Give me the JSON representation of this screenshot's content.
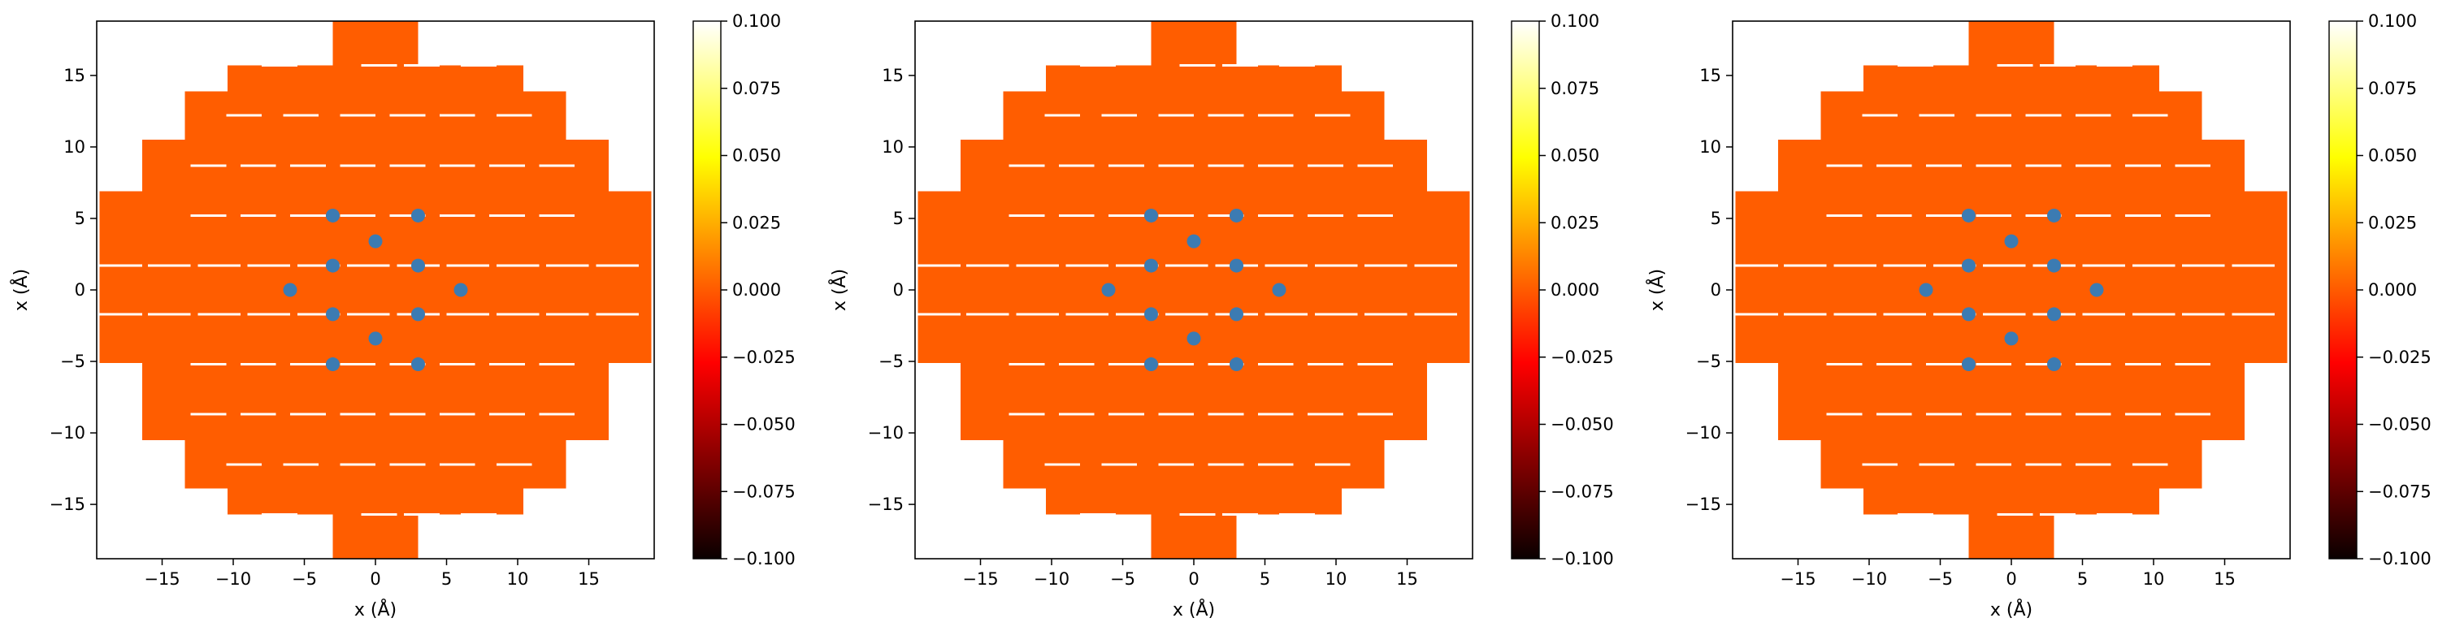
{
  "chart_data": [
    {
      "type": "heatmap",
      "xlabel": "x (Å)",
      "ylabel": "x (Å)",
      "xlim": [
        -19.6,
        19.6
      ],
      "ylim": [
        -18.8,
        18.8
      ],
      "xticks": [
        -15,
        -10,
        -5,
        0,
        5,
        10,
        15
      ],
      "yticks": [
        -15,
        -10,
        -5,
        0,
        5,
        10,
        15
      ],
      "xtick_labels": [
        "−15",
        "−10",
        "−5",
        "0",
        "5",
        "10",
        "15"
      ],
      "ytick_labels": [
        "−15",
        "−10",
        "−5",
        "0",
        "5",
        "10",
        "15"
      ],
      "colormap": "hot",
      "field_value": 0.0,
      "field_color": "#ff5d00",
      "colorbar": {
        "range": [
          -0.1,
          0.1
        ],
        "ticks": [
          0.1,
          0.075,
          0.05,
          0.025,
          0.0,
          -0.025,
          -0.05,
          -0.075,
          -0.1
        ],
        "tick_labels": [
          "0.100",
          "0.075",
          "0.050",
          "0.025",
          "0.000",
          "−0.025",
          "−0.050",
          "−0.075",
          "−0.100"
        ]
      },
      "points": {
        "color": "#3c7bb2",
        "x": [
          -3,
          3,
          0,
          -3,
          3,
          -6,
          6,
          -3,
          3,
          0,
          -3,
          3
        ],
        "y": [
          5.2,
          5.2,
          3.4,
          1.7,
          1.7,
          0,
          0,
          -1.7,
          -1.7,
          -3.4,
          -5.2,
          -5.2
        ]
      }
    },
    {
      "type": "heatmap",
      "xlabel": "x (Å)",
      "ylabel": "x (Å)",
      "xlim": [
        -19.6,
        19.6
      ],
      "ylim": [
        -18.8,
        18.8
      ],
      "xticks": [
        -15,
        -10,
        -5,
        0,
        5,
        10,
        15
      ],
      "yticks": [
        -15,
        -10,
        -5,
        0,
        5,
        10,
        15
      ],
      "xtick_labels": [
        "−15",
        "−10",
        "−5",
        "0",
        "5",
        "10",
        "15"
      ],
      "ytick_labels": [
        "−15",
        "−10",
        "−5",
        "0",
        "5",
        "10",
        "15"
      ],
      "colormap": "hot",
      "field_value": 0.0,
      "field_color": "#ff5d00",
      "colorbar": {
        "range": [
          -0.1,
          0.1
        ],
        "ticks": [
          0.1,
          0.075,
          0.05,
          0.025,
          0.0,
          -0.025,
          -0.05,
          -0.075,
          -0.1
        ],
        "tick_labels": [
          "0.100",
          "0.075",
          "0.050",
          "0.025",
          "0.000",
          "−0.025",
          "−0.050",
          "−0.075",
          "−0.100"
        ]
      },
      "points": {
        "color": "#3c7bb2",
        "x": [
          -3,
          3,
          0,
          -3,
          3,
          -6,
          6,
          -3,
          3,
          0,
          -3,
          3
        ],
        "y": [
          5.2,
          5.2,
          3.4,
          1.7,
          1.7,
          0,
          0,
          -1.7,
          -1.7,
          -3.4,
          -5.2,
          -5.2
        ]
      }
    },
    {
      "type": "heatmap",
      "xlabel": "x (Å)",
      "ylabel": "x (Å)",
      "xlim": [
        -19.6,
        19.6
      ],
      "ylim": [
        -18.8,
        18.8
      ],
      "xticks": [
        -15,
        -10,
        -5,
        0,
        5,
        10,
        15
      ],
      "yticks": [
        -15,
        -10,
        -5,
        0,
        5,
        10,
        15
      ],
      "xtick_labels": [
        "−15",
        "−10",
        "−5",
        "0",
        "5",
        "10",
        "15"
      ],
      "ytick_labels": [
        "−15",
        "−10",
        "−5",
        "0",
        "5",
        "10",
        "15"
      ],
      "colormap": "hot",
      "field_value": 0.0,
      "field_color": "#ff5d00",
      "colorbar": {
        "range": [
          -0.1,
          0.1
        ],
        "ticks": [
          0.1,
          0.075,
          0.05,
          0.025,
          0.0,
          -0.025,
          -0.05,
          -0.075,
          -0.1
        ],
        "tick_labels": [
          "0.100",
          "0.075",
          "0.050",
          "0.025",
          "0.000",
          "−0.025",
          "−0.050",
          "−0.075",
          "−0.100"
        ]
      },
      "points": {
        "color": "#3c7bb2",
        "x": [
          -3,
          3,
          0,
          -3,
          3,
          -6,
          6,
          -3,
          3,
          0,
          -3,
          3
        ],
        "y": [
          5.2,
          5.2,
          3.4,
          1.7,
          1.7,
          0,
          0,
          -1.7,
          -1.7,
          -3.4,
          -5.2,
          -5.2
        ]
      }
    }
  ]
}
